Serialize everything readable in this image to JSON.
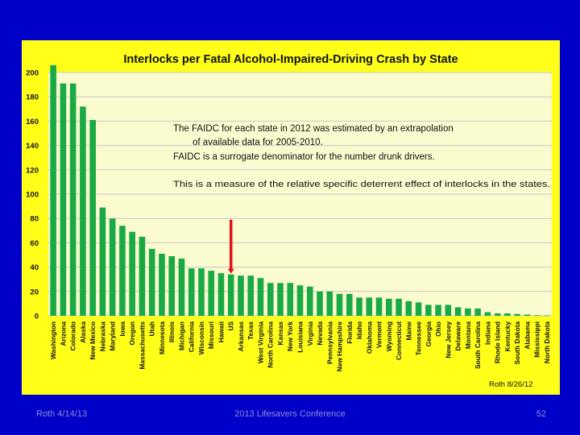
{
  "colors": {
    "background": "#0000c8",
    "panel": "#ffff1a",
    "plot": "#fbfbd0",
    "bar": "#1aaa45",
    "grid": "#c8c8c8",
    "arrow": "#e0101a",
    "footer_text": "#8c8cd8"
  },
  "annotations": {
    "line1": "The FAIDC for each state in 2012 was estimated by an extrapolation",
    "line2": "of available data for 2005-2010.",
    "line3": "FAIDC is a surrogate denominator for the number drunk drivers.",
    "line4": "This is a measure of the relative specific deterrent  effect of interlocks in the states.",
    "credit": "Roth 8/26/12"
  },
  "footer": {
    "left": "Roth 4/14/13",
    "center": "2013 Lifesavers Conference",
    "page_number": "52"
  },
  "chart_data": {
    "type": "bar",
    "title": "Interlocks per Fatal Alcohol-Impaired-Driving Crash by State",
    "xlabel": "",
    "ylabel": "",
    "ylim": [
      0,
      200
    ],
    "yticks": [
      0,
      20,
      40,
      60,
      80,
      100,
      120,
      140,
      160,
      180,
      200
    ],
    "grid": true,
    "highlight_category": "US",
    "categories": [
      "Washington",
      "Arizona",
      "Colorado",
      "Alaska",
      "New Mexico",
      "Nebraska",
      "Maryland",
      "Iowa",
      "Oregon",
      "Massachusetts",
      "Utah",
      "Minnesota",
      "Illinois",
      "Michigan",
      "California",
      "Wisconsin",
      "Missouri",
      "Hawaii",
      "US",
      "Arkansas",
      "Texas",
      "West Virginia",
      "North Carolina",
      "Kansas",
      "New York",
      "Louisiana",
      "Virginia",
      "Nevada",
      "Pennsylvania",
      "New Hampshire",
      "Florida",
      "Idaho",
      "Oklahoma",
      "Vermont",
      "Wyoming",
      "Connecticut",
      "Maine",
      "Tennessee",
      "Georgia",
      "Ohio",
      "New Jersey",
      "Delaware",
      "Montana",
      "South Carolina",
      "Indiana",
      "Rhode Island",
      "Kentucky",
      "South Dakota",
      "Alabama",
      "Mississippi",
      "North Dakota"
    ],
    "values": [
      206,
      191,
      191,
      172,
      161,
      89,
      80,
      74,
      69,
      65,
      55,
      51,
      49,
      47,
      39,
      39,
      37,
      35,
      34,
      33,
      33,
      31,
      27,
      27,
      27,
      25,
      24,
      20,
      20,
      18,
      18,
      15,
      15,
      15,
      14,
      14,
      12,
      11,
      9,
      9,
      9,
      7,
      6,
      6,
      3,
      2,
      2,
      1.5,
      1,
      0.5,
      0.3
    ]
  }
}
